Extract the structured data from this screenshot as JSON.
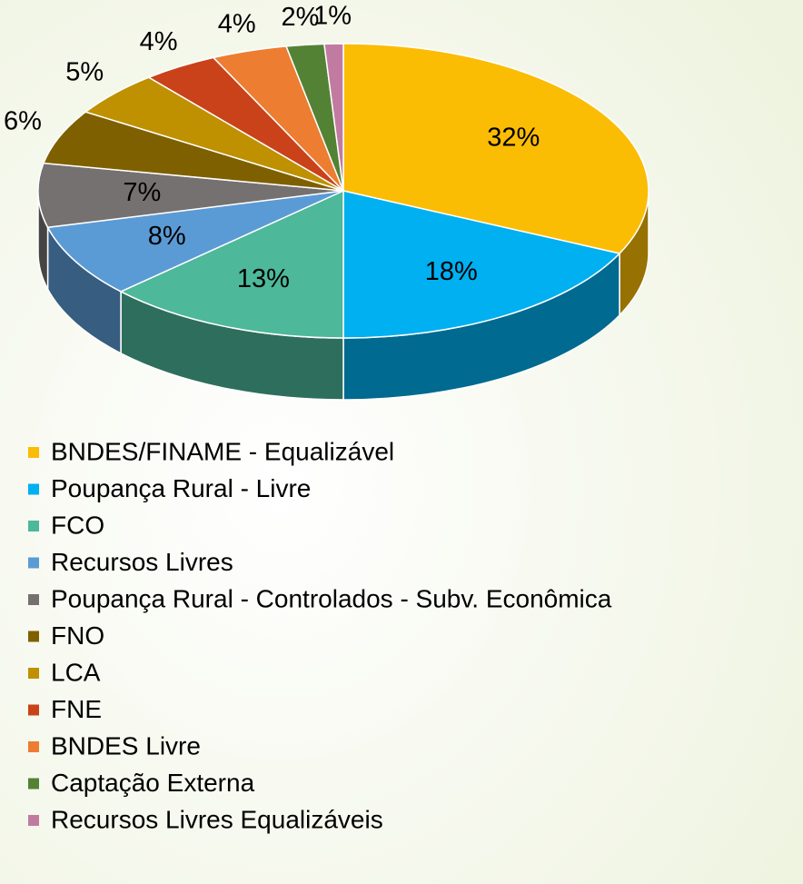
{
  "chart_data": {
    "type": "pie3d",
    "categories": [
      "BNDES/FINAME - Equalizável",
      "Poupança Rural - Livre",
      "FCO",
      "Recursos Livres",
      "Poupança Rural - Controlados - Subv. Econômica",
      "FNO",
      "LCA",
      "FNE",
      "BNDES Livre",
      "Captação Externa",
      "Recursos Livres Equalizáveis"
    ],
    "values": [
      32,
      18,
      13,
      8,
      7,
      6,
      5,
      4,
      4,
      2,
      1
    ],
    "value_labels": [
      "32%",
      "18%",
      "13%",
      "8%",
      "7%",
      "6%",
      "5%",
      "4%",
      "4%",
      "2%",
      "1%"
    ],
    "colors": [
      "#fbbc04",
      "#00b0f0",
      "#4db89a",
      "#5b9bd5",
      "#767171",
      "#7f6000",
      "#bf9000",
      "#c9421a",
      "#ed7d31",
      "#548235",
      "#c27ba0"
    ]
  }
}
